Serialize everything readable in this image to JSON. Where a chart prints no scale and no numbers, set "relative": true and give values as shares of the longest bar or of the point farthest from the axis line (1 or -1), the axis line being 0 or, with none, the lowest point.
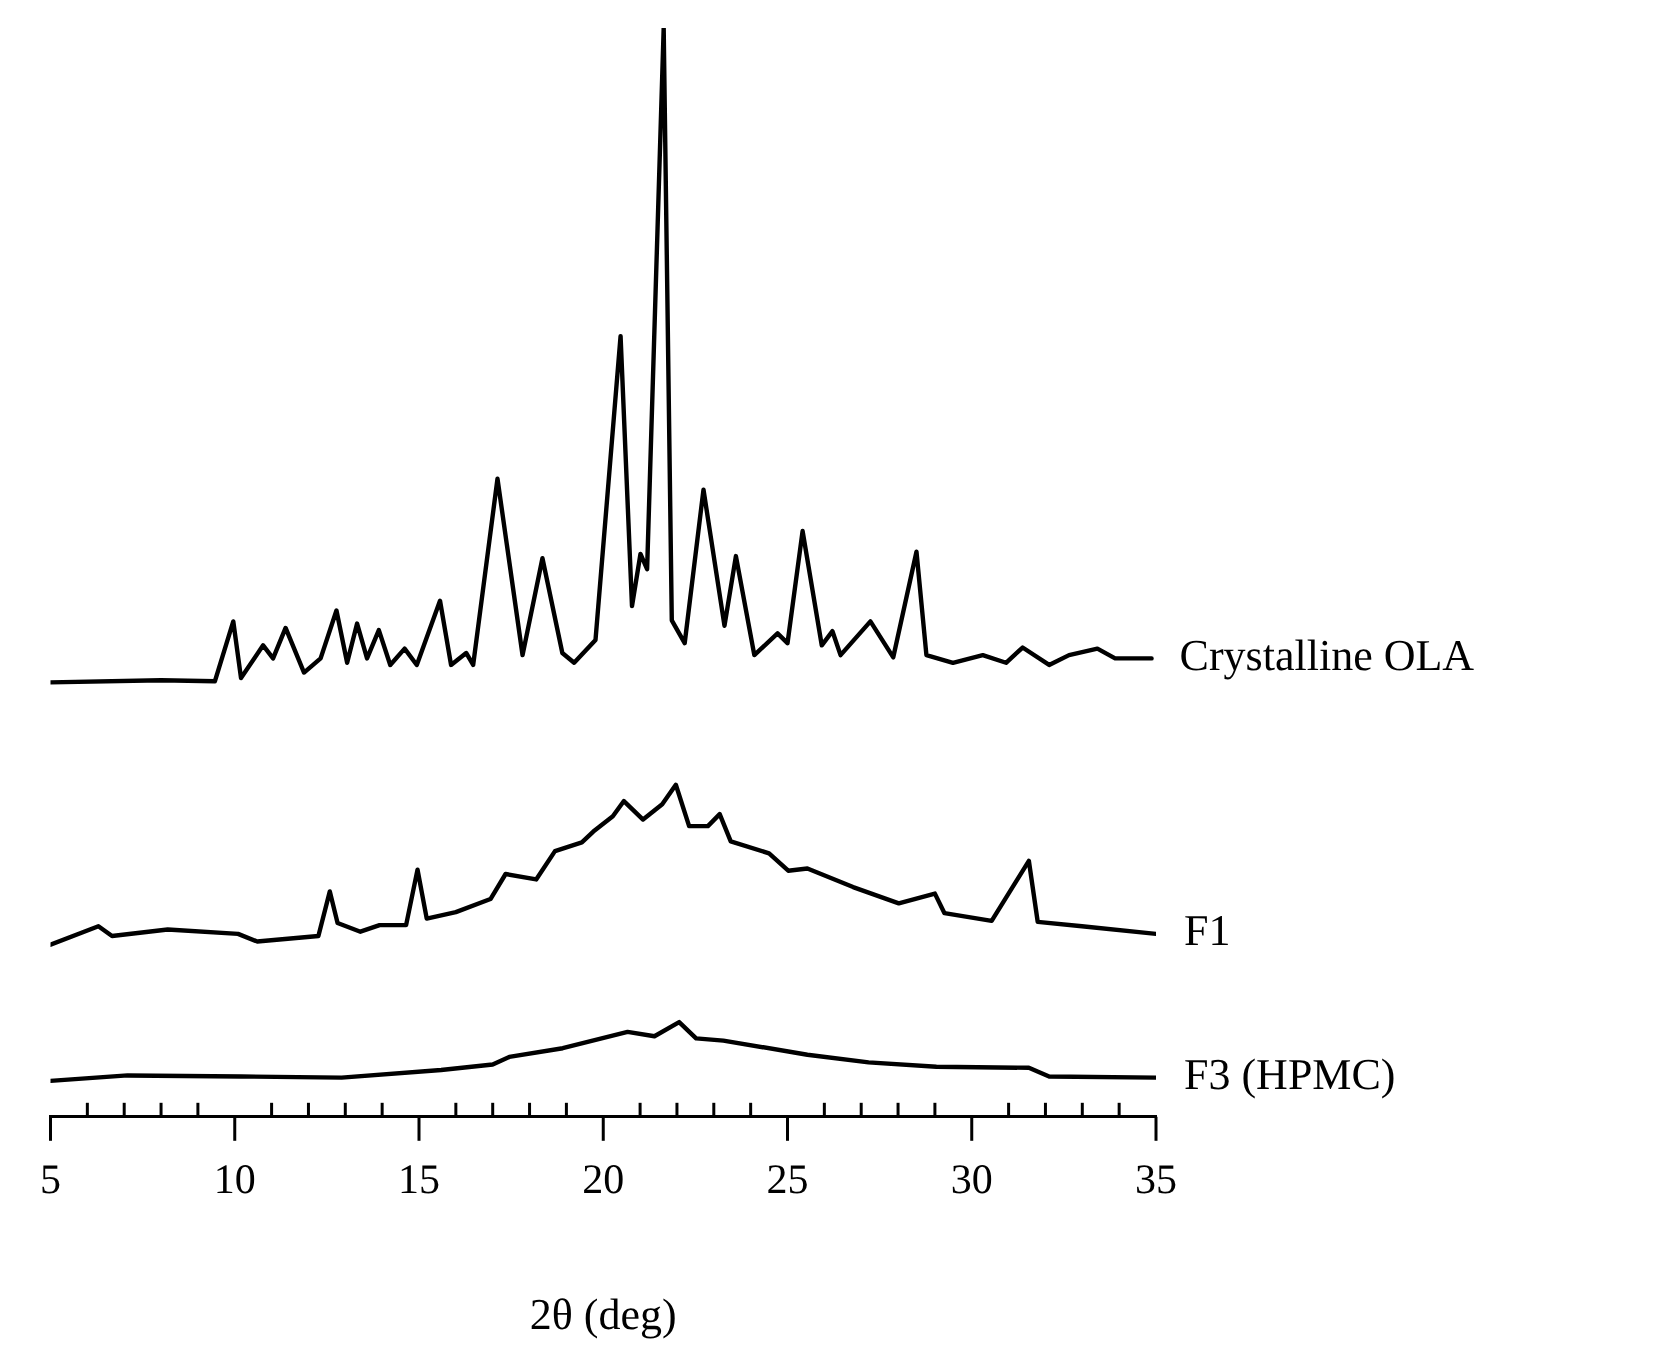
{
  "chart_data": {
    "type": "line",
    "relative": true,
    "xlabel": "2θ (deg)",
    "xlim": [
      5,
      35
    ],
    "grid": false,
    "legend": false,
    "marker": "none",
    "line_style": "solid",
    "xticks": [
      5,
      {
        "value": 6,
        "label": null
      },
      {
        "value": 7,
        "label": null
      },
      {
        "value": 8,
        "label": null
      },
      {
        "value": 9,
        "label": null
      },
      10,
      {
        "value": 11,
        "label": null
      },
      {
        "value": 12,
        "label": null
      },
      {
        "value": 13,
        "label": null
      },
      {
        "value": 14,
        "label": null
      },
      15,
      {
        "value": 16,
        "label": null
      },
      {
        "value": 17,
        "label": null
      },
      {
        "value": 18,
        "label": null
      },
      {
        "value": 19,
        "label": null
      },
      20,
      {
        "value": 21,
        "label": null
      },
      {
        "value": 22,
        "label": null
      },
      {
        "value": 23,
        "label": null
      },
      {
        "value": 24,
        "label": null
      },
      25,
      {
        "value": 26,
        "label": null
      },
      {
        "value": 27,
        "label": null
      },
      {
        "value": 28,
        "label": null
      },
      {
        "value": 29,
        "label": null
      },
      30,
      {
        "value": 31,
        "label": null
      },
      {
        "value": 32,
        "label": null
      },
      {
        "value": 33,
        "label": null
      },
      {
        "value": 34,
        "label": null
      },
      35
    ],
    "series": [
      {
        "name": "Crystalline OLA",
        "color": "#000000",
        "x": [
          5,
          8,
          9.46,
          9.96,
          10.17,
          10.77,
          11.04,
          11.38,
          11.88,
          12.33,
          12.76,
          13.05,
          13.32,
          13.59,
          13.91,
          14.22,
          14.61,
          14.94,
          15.57,
          15.87,
          16.28,
          16.47,
          17.13,
          17.81,
          18.35,
          18.89,
          19.21,
          19.79,
          20.47,
          20.78,
          21.01,
          21.19,
          21.64,
          21.86,
          22.21,
          22.72,
          23.29,
          23.6,
          24.1,
          24.73,
          25.0,
          25.41,
          25.93,
          26.22,
          26.44,
          27.25,
          27.87,
          28.5,
          28.77,
          29.49,
          30.3,
          30.93,
          31.38,
          32.1,
          32.64,
          33.41,
          33.89,
          34.88
        ],
        "values": [
          0.399,
          0.401,
          0.4,
          0.455,
          0.403,
          0.433,
          0.421,
          0.449,
          0.408,
          0.421,
          0.465,
          0.417,
          0.453,
          0.421,
          0.447,
          0.415,
          0.43,
          0.415,
          0.474,
          0.415,
          0.426,
          0.415,
          0.586,
          0.424,
          0.513,
          0.426,
          0.417,
          0.438,
          0.717,
          0.469,
          0.517,
          0.503,
          1.0,
          0.456,
          0.435,
          0.576,
          0.451,
          0.515,
          0.424,
          0.444,
          0.435,
          0.538,
          0.433,
          0.446,
          0.424,
          0.455,
          0.422,
          0.519,
          0.424,
          0.417,
          0.424,
          0.417,
          0.431,
          0.415,
          0.424,
          0.43,
          0.421,
          0.421
        ]
      },
      {
        "name": "F1",
        "color": "#000000",
        "x": [
          5,
          6.3,
          6.67,
          8.18,
          10.09,
          10.61,
          12.27,
          12.58,
          12.79,
          13.41,
          13.93,
          14.65,
          14.96,
          15.21,
          16.0,
          16.94,
          17.35,
          18.18,
          18.69,
          19.42,
          19.73,
          20.26,
          20.56,
          21.08,
          21.6,
          21.97,
          22.33,
          22.84,
          23.16,
          23.46,
          24.5,
          25.02,
          25.54,
          26.78,
          28.02,
          29.0,
          29.26,
          30.54,
          31.55,
          31.79,
          32.99,
          35
        ],
        "values": [
          0.158,
          0.175,
          0.166,
          0.172,
          0.168,
          0.161,
          0.166,
          0.207,
          0.178,
          0.17,
          0.176,
          0.176,
          0.227,
          0.182,
          0.188,
          0.2,
          0.223,
          0.218,
          0.244,
          0.252,
          0.262,
          0.276,
          0.29,
          0.273,
          0.287,
          0.305,
          0.267,
          0.267,
          0.278,
          0.253,
          0.242,
          0.226,
          0.228,
          0.211,
          0.196,
          0.205,
          0.187,
          0.18,
          0.235,
          0.179,
          0.175,
          0.168
        ]
      },
      {
        "name": "F3 (HPMC)",
        "color": "#000000",
        "x": [
          5,
          7.09,
          10.18,
          12.9,
          15.6,
          17.0,
          17.45,
          18.9,
          20.66,
          21.39,
          22.06,
          22.52,
          23.26,
          25.54,
          27.2,
          29.04,
          31.55,
          32.1,
          35
        ],
        "values": [
          0.033,
          0.038,
          0.037,
          0.036,
          0.043,
          0.048,
          0.055,
          0.063,
          0.078,
          0.074,
          0.087,
          0.072,
          0.07,
          0.057,
          0.05,
          0.046,
          0.045,
          0.037,
          0.036
        ]
      }
    ]
  }
}
